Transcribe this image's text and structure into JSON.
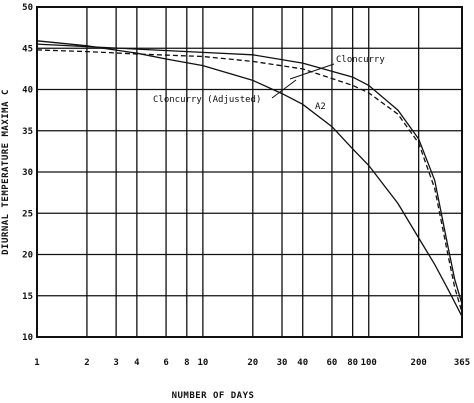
{
  "chart_data": {
    "type": "line",
    "title": "",
    "xlabel": "NUMBER OF DAYS",
    "ylabel": "DIURNAL TEMPERATURE MAXIMA C",
    "x_scale": "log",
    "xlim": [
      1,
      365
    ],
    "ylim": [
      10,
      50
    ],
    "grid": true,
    "x_ticks": [
      1,
      2,
      3,
      4,
      6,
      8,
      10,
      20,
      30,
      40,
      60,
      80,
      100,
      200,
      365
    ],
    "x_tick_labels": [
      "1",
      "2",
      "3",
      "4",
      "6",
      "8",
      "10",
      "20",
      "30",
      "40",
      "60",
      "80",
      "100",
      "200",
      "365"
    ],
    "y_ticks": [
      10,
      15,
      20,
      25,
      30,
      35,
      40,
      45,
      50
    ],
    "y_tick_labels": [
      "10",
      "15",
      "20",
      "25",
      "30",
      "35",
      "40",
      "45",
      "50"
    ],
    "annotations": [
      "Cloncurry",
      "Cloncurry (Adjusted)",
      "A2"
    ],
    "series": [
      {
        "name": "Cloncurry",
        "style": "solid",
        "x": [
          1,
          2,
          4,
          10,
          20,
          40,
          80,
          100,
          150,
          200,
          250,
          300,
          330,
          365
        ],
        "y": [
          45.5,
          45.2,
          44.9,
          44.5,
          44.2,
          43.2,
          41.5,
          40.5,
          37.5,
          34,
          29,
          21,
          17,
          14
        ]
      },
      {
        "name": "Cloncurry (Adjusted)",
        "style": "dashed",
        "x": [
          1,
          2,
          4,
          10,
          20,
          40,
          80,
          100,
          150,
          200,
          250,
          300,
          330,
          365
        ],
        "y": [
          44.8,
          44.6,
          44.3,
          44.0,
          43.4,
          42.5,
          40.5,
          39.6,
          37,
          33.5,
          28,
          20,
          16,
          13
        ]
      },
      {
        "name": "A2",
        "style": "solid",
        "x": [
          1,
          2,
          4,
          6,
          10,
          20,
          30,
          40,
          60,
          80,
          100,
          150,
          200,
          250,
          300,
          365
        ],
        "y": [
          45.9,
          45.3,
          44.4,
          43.7,
          42.9,
          41.1,
          39.5,
          38.2,
          35.5,
          32.8,
          30.8,
          26.2,
          22,
          18.8,
          15.8,
          12.5
        ]
      }
    ]
  }
}
